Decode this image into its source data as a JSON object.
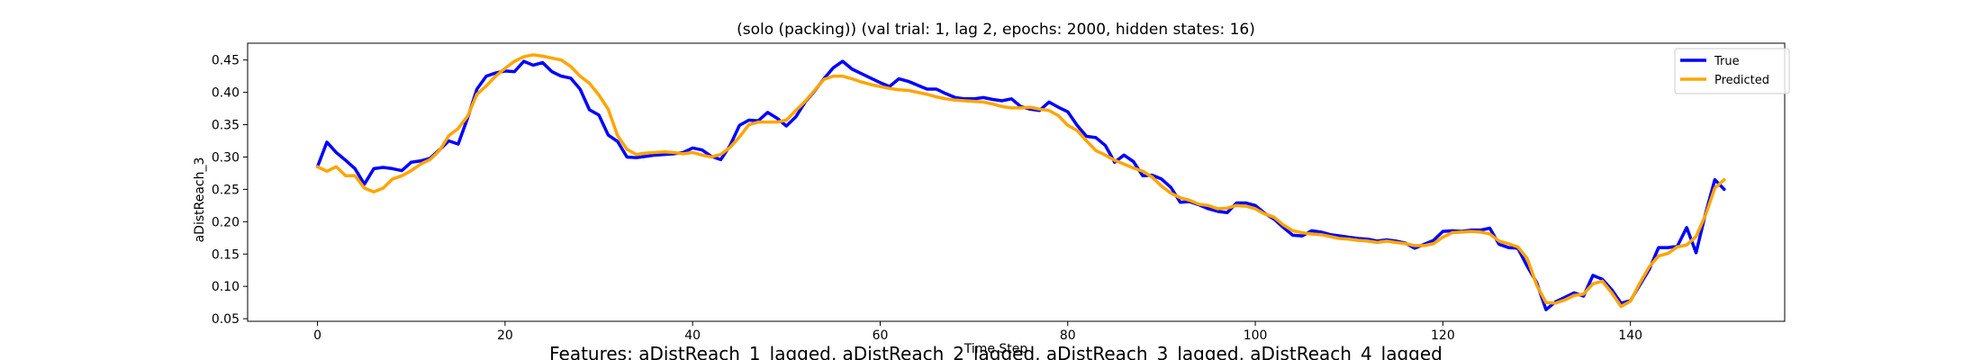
{
  "chart_data": {
    "type": "line",
    "title": "(solo (packing)) (val trial: 1, lag 2, epochs: 2000, hidden states: 16)",
    "xlabel": "Time Step",
    "ylabel": "aDistReach_3",
    "footer": "Features: aDistReach_1_lagged, aDistReach_2_lagged, aDistReach_3_lagged, aDistReach_4_lagged",
    "xlim": [
      -7.45,
      156.45
    ],
    "ylim": [
      0.046,
      0.476
    ],
    "xticks": [
      0,
      20,
      40,
      60,
      80,
      100,
      120,
      140
    ],
    "yticks": [
      0.05,
      0.1,
      0.15,
      0.2,
      0.25,
      0.3,
      0.35,
      0.4,
      0.45
    ],
    "grid": false,
    "legend_position": "top-right",
    "series": [
      {
        "name": "True",
        "color": "#0000ff",
        "values": [
          0.285,
          0.323,
          0.307,
          0.295,
          0.282,
          0.258,
          0.282,
          0.284,
          0.282,
          0.279,
          0.292,
          0.294,
          0.298,
          0.311,
          0.325,
          0.32,
          0.36,
          0.405,
          0.425,
          0.43,
          0.433,
          0.432,
          0.448,
          0.442,
          0.446,
          0.432,
          0.425,
          0.422,
          0.405,
          0.373,
          0.365,
          0.334,
          0.324,
          0.3,
          0.299,
          0.301,
          0.303,
          0.304,
          0.305,
          0.307,
          0.314,
          0.311,
          0.301,
          0.296,
          0.318,
          0.349,
          0.357,
          0.356,
          0.369,
          0.36,
          0.348,
          0.362,
          0.385,
          0.402,
          0.421,
          0.438,
          0.448,
          0.436,
          0.429,
          0.422,
          0.415,
          0.409,
          0.421,
          0.417,
          0.411,
          0.405,
          0.405,
          0.398,
          0.392,
          0.39,
          0.39,
          0.392,
          0.389,
          0.387,
          0.39,
          0.378,
          0.374,
          0.372,
          0.385,
          0.377,
          0.37,
          0.349,
          0.332,
          0.33,
          0.318,
          0.292,
          0.303,
          0.293,
          0.271,
          0.272,
          0.266,
          0.253,
          0.23,
          0.231,
          0.226,
          0.22,
          0.216,
          0.214,
          0.229,
          0.229,
          0.225,
          0.213,
          0.204,
          0.191,
          0.179,
          0.178,
          0.186,
          0.184,
          0.18,
          0.178,
          0.176,
          0.174,
          0.173,
          0.17,
          0.172,
          0.17,
          0.167,
          0.159,
          0.165,
          0.171,
          0.185,
          0.186,
          0.185,
          0.187,
          0.187,
          0.19,
          0.165,
          0.16,
          0.159,
          0.131,
          0.106,
          0.064,
          0.076,
          0.083,
          0.09,
          0.085,
          0.117,
          0.111,
          0.095,
          0.074,
          0.078,
          0.102,
          0.126,
          0.16,
          0.16,
          0.162,
          0.191,
          0.152,
          0.212,
          0.265,
          0.25
        ]
      },
      {
        "name": "Predicted",
        "color": "#ffa500",
        "values": [
          0.285,
          0.278,
          0.285,
          0.271,
          0.271,
          0.252,
          0.246,
          0.252,
          0.266,
          0.271,
          0.279,
          0.289,
          0.296,
          0.31,
          0.333,
          0.344,
          0.363,
          0.397,
          0.41,
          0.425,
          0.437,
          0.448,
          0.455,
          0.458,
          0.456,
          0.453,
          0.45,
          0.44,
          0.425,
          0.414,
          0.396,
          0.374,
          0.333,
          0.312,
          0.304,
          0.306,
          0.307,
          0.308,
          0.307,
          0.305,
          0.307,
          0.303,
          0.3,
          0.304,
          0.315,
          0.331,
          0.35,
          0.354,
          0.354,
          0.354,
          0.357,
          0.372,
          0.386,
          0.403,
          0.42,
          0.425,
          0.425,
          0.421,
          0.416,
          0.412,
          0.409,
          0.406,
          0.404,
          0.403,
          0.4,
          0.397,
          0.393,
          0.39,
          0.388,
          0.387,
          0.386,
          0.385,
          0.382,
          0.378,
          0.376,
          0.376,
          0.377,
          0.374,
          0.372,
          0.364,
          0.349,
          0.341,
          0.325,
          0.31,
          0.303,
          0.295,
          0.289,
          0.283,
          0.278,
          0.269,
          0.255,
          0.244,
          0.237,
          0.233,
          0.227,
          0.225,
          0.22,
          0.221,
          0.225,
          0.224,
          0.22,
          0.212,
          0.207,
          0.195,
          0.186,
          0.183,
          0.181,
          0.18,
          0.177,
          0.174,
          0.173,
          0.171,
          0.17,
          0.168,
          0.17,
          0.168,
          0.166,
          0.163,
          0.163,
          0.166,
          0.176,
          0.183,
          0.184,
          0.185,
          0.184,
          0.181,
          0.17,
          0.166,
          0.161,
          0.143,
          0.102,
          0.075,
          0.074,
          0.079,
          0.086,
          0.088,
          0.104,
          0.108,
          0.09,
          0.069,
          0.077,
          0.105,
          0.13,
          0.147,
          0.151,
          0.161,
          0.164,
          0.177,
          0.21,
          0.252,
          0.265
        ]
      }
    ]
  }
}
